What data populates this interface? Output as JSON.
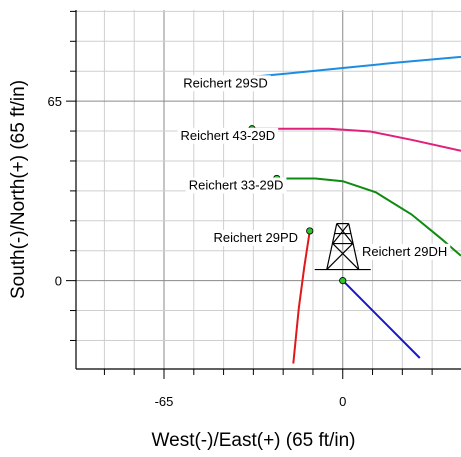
{
  "chart_data": {
    "type": "line",
    "title": "",
    "xlabel": "West(-)/East(+) (65 ft/in)",
    "ylabel": "South(-)/North(+) (65 ft/in)",
    "xlim": [
      -97,
      43
    ],
    "ylim": [
      -32,
      98
    ],
    "xticks": [
      -65,
      0
    ],
    "yticks": [
      0,
      65
    ],
    "grid": true,
    "series": [
      {
        "name": "Reichert 29SD",
        "color": "#1e8ce0",
        "points": [
          [
            -42,
            73
          ],
          [
            -20,
            75
          ],
          [
            0,
            77
          ],
          [
            20,
            79
          ],
          [
            43,
            81
          ]
        ],
        "label_at": [
          -58,
          70
        ]
      },
      {
        "name": "Reichert 43-29D",
        "color": "#e0207a",
        "points": [
          [
            -33,
            55
          ],
          [
            -20,
            55
          ],
          [
            -5,
            55
          ],
          [
            10,
            54
          ],
          [
            25,
            51
          ],
          [
            43,
            47
          ]
        ],
        "label_at": [
          -59,
          51
        ]
      },
      {
        "name": "Reichert 33-29D",
        "color": "#108a10",
        "points": [
          [
            -24,
            37
          ],
          [
            -10,
            37
          ],
          [
            0,
            36
          ],
          [
            12,
            32
          ],
          [
            25,
            24
          ],
          [
            36,
            15
          ],
          [
            43,
            9
          ]
        ],
        "label_at": [
          -56,
          33
        ]
      },
      {
        "name": "Reichert 29PD",
        "color": "#e01818",
        "points": [
          [
            -12,
            18
          ],
          [
            -14,
            5
          ],
          [
            -16,
            -10
          ],
          [
            -18,
            -30
          ]
        ],
        "label_at": [
          -47,
          14
        ]
      },
      {
        "name": "Reichert 29DH",
        "label_text": "Reichert 29DH",
        "color": "#1818c8",
        "points": [
          [
            0,
            0
          ],
          [
            14,
            -14
          ],
          [
            28,
            -28
          ]
        ],
        "label_at": [
          7,
          9
        ]
      }
    ],
    "rig_symbol": {
      "x": 0,
      "y": 4,
      "icon": "drilling-rig-icon"
    }
  }
}
